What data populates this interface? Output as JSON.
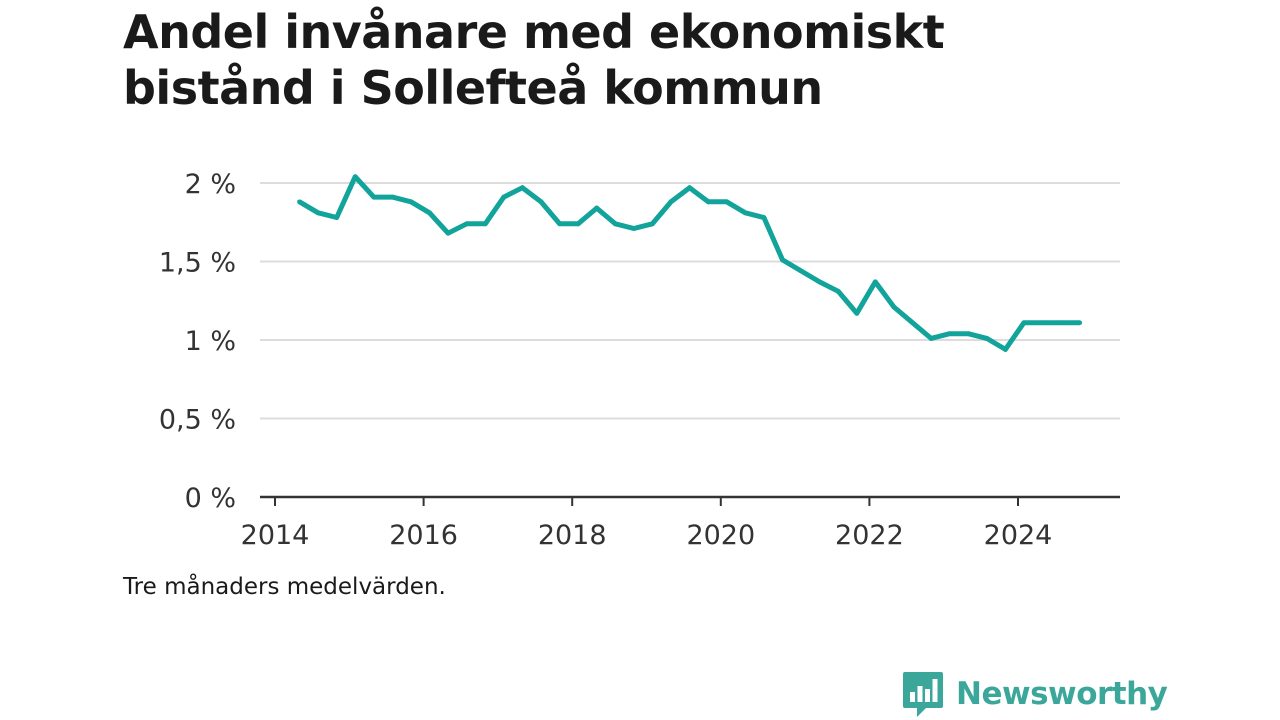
{
  "header": {
    "title_line1": "Andel invånare med ekonomiskt",
    "title_line2": "bistånd i Sollefteå kommun"
  },
  "caption": "Tre månaders medelvärden.",
  "brand": {
    "name": "Newsworthy",
    "icon": "bar-chart-speech-bubble-icon",
    "color": "#3aa79a"
  },
  "colors": {
    "line": "#12a39a",
    "grid": "#dcdcdc",
    "axis": "#333333"
  },
  "chart_data": {
    "type": "line",
    "title": "Andel invånare med ekonomiskt bistånd i Sollefteå kommun",
    "xlabel": "",
    "ylabel": "",
    "xlim": [
      2014,
      2025.4
    ],
    "ylim": [
      0,
      2
    ],
    "x_ticks": [
      2014,
      2016,
      2018,
      2020,
      2022,
      2024
    ],
    "x_tick_labels": [
      "2014",
      "2016",
      "2018",
      "2020",
      "2022",
      "2024"
    ],
    "y_ticks": [
      0,
      0.5,
      1,
      1.5,
      2
    ],
    "y_tick_labels": [
      "0 %",
      "0,5 %",
      "1 %",
      "1,5 %",
      "2 %"
    ],
    "grid": true,
    "legend": "none",
    "series": [
      {
        "x": [
          2014.33,
          2014.58,
          2014.83,
          2015.08,
          2015.33,
          2015.58,
          2015.83,
          2016.08,
          2016.33,
          2016.58,
          2016.83,
          2017.08,
          2017.33,
          2017.58,
          2017.83,
          2018.08,
          2018.33,
          2018.58,
          2018.83,
          2019.08,
          2019.33,
          2019.58,
          2019.83,
          2020.08,
          2020.33,
          2020.58,
          2020.83,
          2021.08,
          2021.33,
          2021.58,
          2021.83,
          2022.08,
          2022.33,
          2022.58,
          2022.83,
          2023.08,
          2023.33,
          2023.58,
          2023.83,
          2024.08,
          2024.33,
          2024.58,
          2024.83
        ],
        "values": [
          1.88,
          1.81,
          1.78,
          2.04,
          1.91,
          1.91,
          1.88,
          1.81,
          1.68,
          1.74,
          1.74,
          1.91,
          1.97,
          1.88,
          1.74,
          1.74,
          1.84,
          1.74,
          1.71,
          1.74,
          1.88,
          1.97,
          1.88,
          1.88,
          1.81,
          1.78,
          1.51,
          1.44,
          1.37,
          1.31,
          1.17,
          1.37,
          1.21,
          1.11,
          1.01,
          1.04,
          1.04,
          1.01,
          0.94,
          1.11,
          1.11,
          1.11,
          1.11
        ]
      }
    ]
  }
}
